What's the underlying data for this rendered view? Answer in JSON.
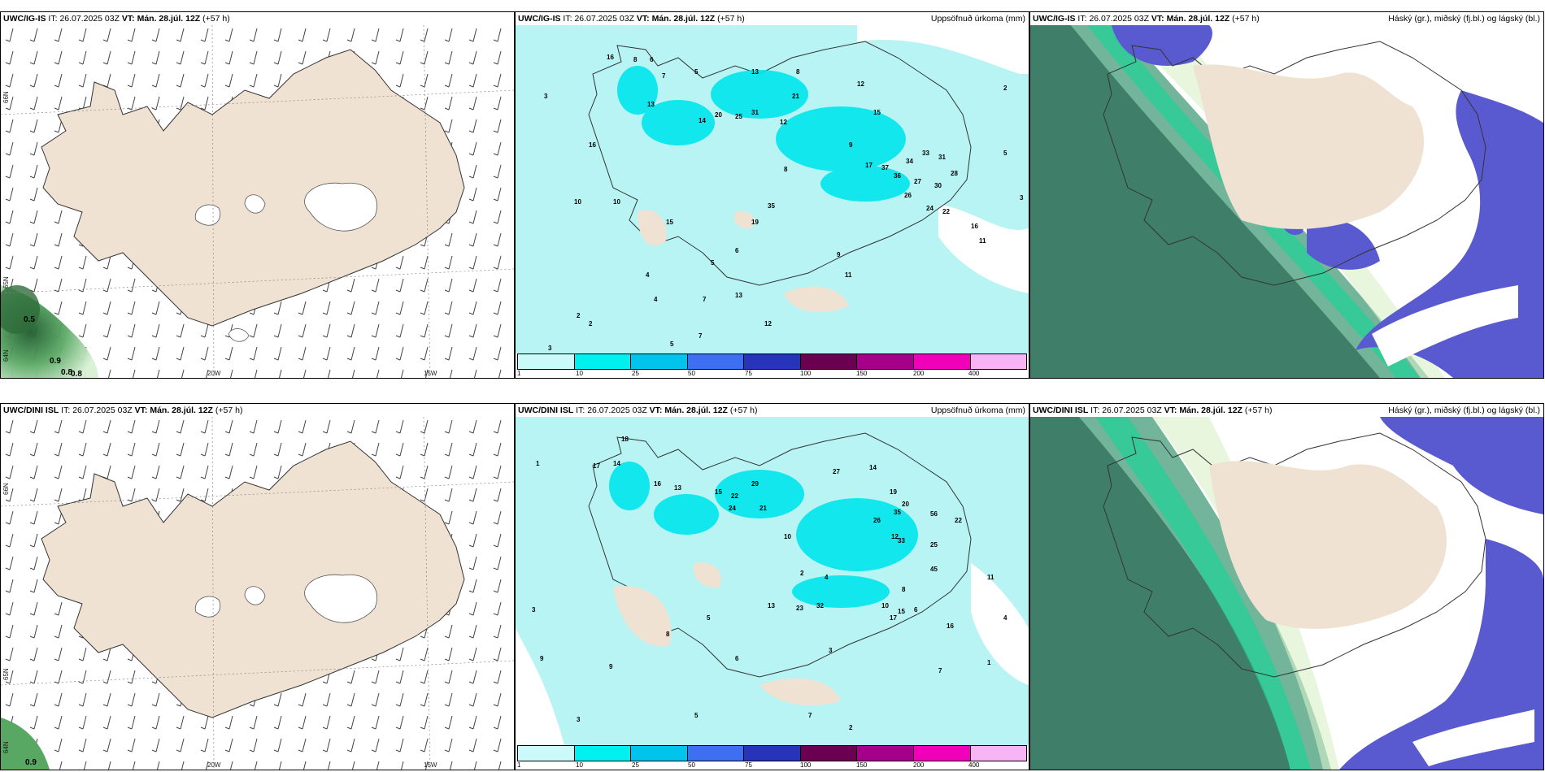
{
  "rows": [
    {
      "model": "UWC/IG-IS",
      "it_label": "IT:",
      "it_value": "26.07.2025 03Z",
      "vt_label": "VT:",
      "vt_value": "Mán. 28.júl. 12Z",
      "lead": "(+57 h)",
      "wind_values": [
        "0.5",
        "0.9",
        "0.8",
        "0.8"
      ],
      "precip_numbers": [
        "3",
        "16",
        "8",
        "6",
        "5",
        "7",
        "13",
        "14",
        "20",
        "25",
        "31",
        "12",
        "13",
        "8",
        "21",
        "12",
        "15",
        "9",
        "17",
        "37",
        "36",
        "34",
        "33",
        "31",
        "28",
        "27",
        "30",
        "26",
        "24",
        "22",
        "11",
        "15",
        "35",
        "16",
        "5",
        "3",
        "2",
        "4",
        "10",
        "19",
        "2",
        "9",
        "11",
        "7",
        "6",
        "5",
        "13",
        "12",
        "16",
        "10",
        "2",
        "3",
        "7",
        "5",
        "4",
        "8"
      ]
    },
    {
      "model": "UWC/DINI ISL",
      "it_label": "IT:",
      "it_value": "26.07.2025 03Z",
      "vt_label": "VT:",
      "vt_value": "Mán. 28.júl. 12Z",
      "lead": "(+57 h)",
      "wind_values": [
        "0.9"
      ],
      "precip_numbers": [
        "1",
        "3",
        "18",
        "14",
        "16",
        "13",
        "17",
        "15",
        "22",
        "29",
        "21",
        "24",
        "27",
        "14",
        "19",
        "20",
        "35",
        "56",
        "22",
        "26",
        "33",
        "25",
        "45",
        "12",
        "10",
        "8",
        "6",
        "4",
        "2",
        "5",
        "7",
        "9",
        "3",
        "11",
        "13",
        "32",
        "23",
        "17",
        "15",
        "16",
        "1",
        "2",
        "3",
        "4",
        "5",
        "6",
        "7",
        "8",
        "9",
        "10"
      ]
    }
  ],
  "precip_title": "Uppsöfnuð úrkoma (mm)",
  "cloud_title": "Háský (gr.), miðský (fj.bl.) og lágský (bl.)",
  "legend": {
    "ticks": [
      "1",
      "10",
      "25",
      "50",
      "75",
      "100",
      "150",
      "200",
      "400"
    ],
    "colors": [
      "#ccfafa",
      "#00f0f0",
      "#00c4ec",
      "#3d6ff0",
      "#2733b8",
      "#6a004f",
      "#a4008a",
      "#f000b8",
      "#f7b4f4"
    ]
  },
  "axis_labels": {
    "lat66": "66N",
    "lat65": "65N",
    "lat64": "64N",
    "lon20": "20W",
    "lon15": "15W"
  },
  "colors": {
    "land": "#efe2d3",
    "precip_light": "#b8f4f4",
    "precip_mid": "#00e6ec",
    "sea_cloud_dark": "#3f7f6a",
    "sea_cloud_mid": "#72b59b",
    "front_green": "#24d097",
    "cloud_blue": "#5a5ad0"
  }
}
